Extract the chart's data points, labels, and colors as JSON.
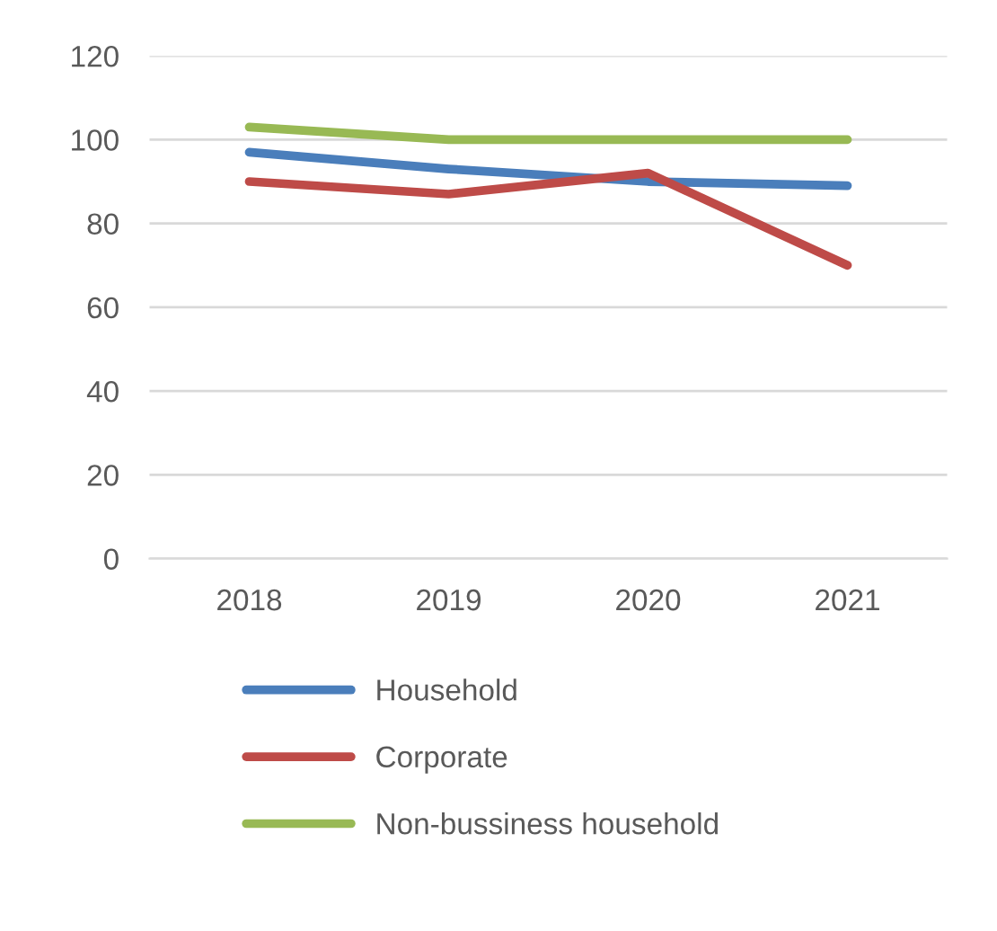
{
  "chart_data": {
    "type": "line",
    "categories": [
      "2018",
      "2019",
      "2020",
      "2021"
    ],
    "series": [
      {
        "name": "Household",
        "color": "#4a7ebb",
        "values": [
          97,
          93,
          90,
          89
        ]
      },
      {
        "name": "Corporate",
        "color": "#be4b48",
        "values": [
          90,
          87,
          92,
          70
        ]
      },
      {
        "name": "Non-bussiness household",
        "color": "#98b954",
        "values": [
          103,
          100,
          100,
          100
        ]
      }
    ],
    "ylim": [
      0,
      120
    ],
    "yticks": [
      0,
      20,
      40,
      60,
      80,
      100,
      120
    ],
    "grid": "y",
    "legend": "bottom",
    "marker": "none",
    "line_style": "solid"
  }
}
